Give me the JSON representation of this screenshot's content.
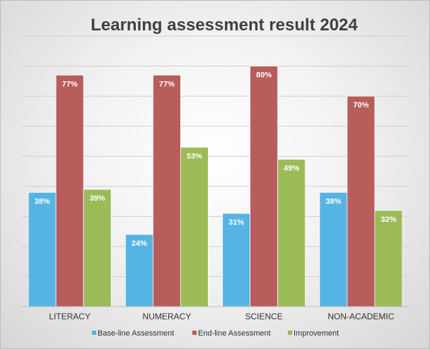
{
  "chart_data": {
    "type": "bar",
    "title": "Learning assessment result 2024",
    "categories": [
      "LITERACY",
      "NUMERACY",
      "SCIENCE",
      "NON-ACADEMIC"
    ],
    "series": [
      {
        "name": "Base-line Assessment",
        "values": [
          38,
          24,
          31,
          38
        ],
        "labels": [
          "38%",
          "24%",
          "31%",
          "38%"
        ],
        "color": "#56b4e4"
      },
      {
        "name": "End-line Assessment",
        "values": [
          77,
          77,
          80,
          70
        ],
        "labels": [
          "77%",
          "77%",
          "80%",
          "70%"
        ],
        "color": "#b85c5c"
      },
      {
        "name": "Improvement",
        "values": [
          39,
          53,
          49,
          32
        ],
        "labels": [
          "39%",
          "53%",
          "49%",
          "32%"
        ],
        "color": "#9bbb59"
      }
    ],
    "ylim": [
      0,
      90
    ],
    "grid": true,
    "legend": "bottom"
  }
}
